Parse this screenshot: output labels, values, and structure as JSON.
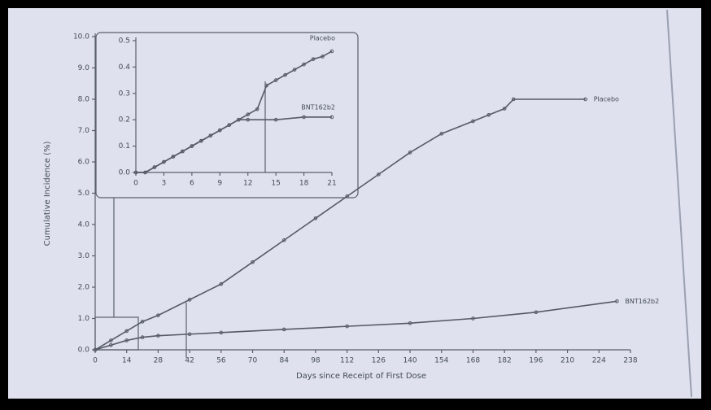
{
  "chart_data": [
    {
      "type": "line",
      "x_label": "Days since Receipt of First Dose",
      "y_label": "Cumulative Incidence (%)",
      "xlim": [
        0,
        238
      ],
      "xticks": [
        0,
        14,
        28,
        42,
        56,
        70,
        84,
        98,
        112,
        126,
        140,
        154,
        168,
        182,
        196,
        210,
        224,
        238
      ],
      "ylim": [
        0,
        10
      ],
      "yticks": [
        {
          "value": 0,
          "label": "0.0"
        },
        {
          "value": 1,
          "label": "1.0"
        },
        {
          "value": 2,
          "label": "2.0"
        },
        {
          "value": 3,
          "label": "3.0"
        },
        {
          "value": 4,
          "label": "4.0"
        },
        {
          "value": 5,
          "label": "5.0"
        },
        {
          "value": 6,
          "label": "6.0"
        },
        {
          "value": 7,
          "label": "7.0"
        },
        {
          "value": 8,
          "label": "8.0"
        },
        {
          "value": 9,
          "label": "9.0"
        },
        {
          "value": 10,
          "label": "10.0"
        }
      ],
      "series": [
        {
          "name": "Placebo",
          "color": "#555a66",
          "x": [
            0,
            7,
            14,
            21,
            28,
            42,
            56,
            70,
            84,
            98,
            112,
            126,
            140,
            154,
            168,
            175,
            182,
            186,
            218
          ],
          "values": [
            0,
            0.3,
            0.6,
            0.9,
            1.1,
            1.6,
            2.1,
            2.8,
            3.5,
            4.2,
            4.9,
            5.6,
            6.3,
            6.9,
            7.3,
            7.5,
            7.7,
            8.0,
            8.0
          ]
        },
        {
          "name": "BNT162b2",
          "color": "#555a66",
          "x": [
            0,
            7,
            14,
            21,
            28,
            42,
            56,
            84,
            112,
            140,
            168,
            196,
            232
          ],
          "values": [
            0,
            0.15,
            0.3,
            0.4,
            0.45,
            0.5,
            0.55,
            0.65,
            0.75,
            0.85,
            1.0,
            1.2,
            1.55
          ]
        }
      ]
    },
    {
      "type": "line",
      "xlim": [
        0,
        21
      ],
      "xticks": [
        0,
        3,
        6,
        9,
        12,
        15,
        18,
        21
      ],
      "ylim": [
        0,
        0.5
      ],
      "yticks": [
        {
          "value": 0,
          "label": "0.0"
        },
        0.1,
        0.2,
        0.3,
        0.4,
        0.5
      ],
      "series": [
        {
          "name": "Placebo",
          "color": "#555a66",
          "x": [
            0,
            1,
            2,
            3,
            4,
            5,
            6,
            7,
            8,
            9,
            10,
            11,
            12,
            13,
            14,
            15,
            16,
            17,
            18,
            19,
            20,
            21
          ],
          "values": [
            0,
            0,
            0.02,
            0.04,
            0.06,
            0.08,
            0.1,
            0.12,
            0.14,
            0.16,
            0.18,
            0.2,
            0.22,
            0.24,
            0.33,
            0.35,
            0.37,
            0.39,
            0.41,
            0.43,
            0.44,
            0.46
          ]
        },
        {
          "name": "BNT162b2",
          "color": "#555a66",
          "x": [
            0,
            1,
            2,
            3,
            4,
            5,
            6,
            7,
            8,
            9,
            10,
            11,
            12,
            15,
            18,
            21
          ],
          "values": [
            0,
            0,
            0.02,
            0.04,
            0.06,
            0.08,
            0.1,
            0.12,
            0.14,
            0.16,
            0.18,
            0.2,
            0.2,
            0.2,
            0.21,
            0.21
          ]
        }
      ]
    }
  ]
}
